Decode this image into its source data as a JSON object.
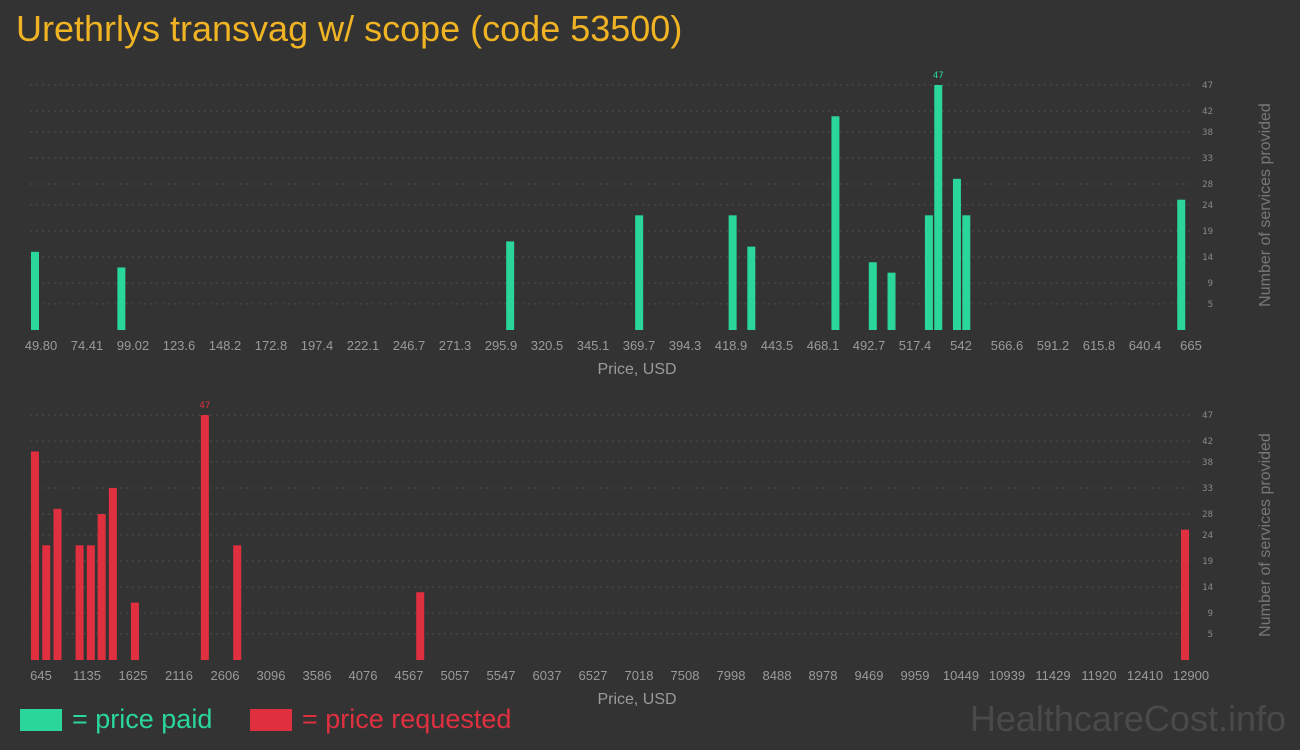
{
  "title": "Urethrlys transvag w/ scope (code 53500)",
  "legend": {
    "paid_label": "= price paid",
    "requested_label": "= price requested"
  },
  "watermark": "HealthcareCost.info",
  "colors": {
    "background": "#333333",
    "title": "#f0b323",
    "paid": "#2ad699",
    "requested": "#e03040",
    "grid": "#4d4d4d",
    "tick_text": "#9a9a9a"
  },
  "chart_data": [
    {
      "type": "bar",
      "series_name": "price paid",
      "xlabel": "Price, USD",
      "ylabel": "Number of services provided",
      "ylim": [
        0,
        50
      ],
      "yticks": [
        "5",
        "9",
        "14",
        "19",
        "24",
        "28",
        "33",
        "38",
        "42",
        "47"
      ],
      "xtick_labels": [
        "49.80",
        "74.41",
        "99.02",
        "123.6",
        "148.2",
        "172.8",
        "197.4",
        "222.1",
        "246.7",
        "271.3",
        "295.9",
        "320.5",
        "345.1",
        "369.7",
        "394.3",
        "418.9",
        "443.5",
        "468.1",
        "492.7",
        "517.4",
        "542",
        "566.6",
        "591.2",
        "615.8",
        "640.4",
        "665"
      ],
      "max_label": "47",
      "bars": [
        {
          "x": 49.8,
          "y": 15
        },
        {
          "x": 96.0,
          "y": 12
        },
        {
          "x": 304.0,
          "y": 17
        },
        {
          "x": 373.0,
          "y": 22
        },
        {
          "x": 423.0,
          "y": 22
        },
        {
          "x": 433.0,
          "y": 16
        },
        {
          "x": 478.0,
          "y": 41
        },
        {
          "x": 498.0,
          "y": 13
        },
        {
          "x": 508.0,
          "y": 11
        },
        {
          "x": 528.0,
          "y": 22
        },
        {
          "x": 533.0,
          "y": 47
        },
        {
          "x": 543.0,
          "y": 29
        },
        {
          "x": 548.0,
          "y": 22
        },
        {
          "x": 663.0,
          "y": 25
        }
      ]
    },
    {
      "type": "bar",
      "series_name": "price requested",
      "xlabel": "Price, USD",
      "ylabel": "Number of services provided",
      "ylim": [
        0,
        50
      ],
      "yticks": [
        "5",
        "9",
        "14",
        "19",
        "24",
        "28",
        "33",
        "38",
        "42",
        "47"
      ],
      "xtick_labels": [
        "645",
        "1135",
        "1625",
        "2116",
        "2606",
        "3096",
        "3586",
        "4076",
        "4567",
        "5057",
        "5547",
        "6037",
        "6527",
        "7018",
        "7508",
        "7998",
        "8488",
        "8978",
        "9469",
        "9959",
        "10449",
        "10939",
        "11429",
        "11920",
        "12410",
        "12900"
      ],
      "max_label": "47",
      "bars": [
        {
          "x": 645,
          "y": 40
        },
        {
          "x": 765,
          "y": 22
        },
        {
          "x": 885,
          "y": 29
        },
        {
          "x": 1120,
          "y": 22
        },
        {
          "x": 1240,
          "y": 22
        },
        {
          "x": 1355,
          "y": 28
        },
        {
          "x": 1475,
          "y": 33
        },
        {
          "x": 1710,
          "y": 11
        },
        {
          "x": 2455,
          "y": 47
        },
        {
          "x": 2800,
          "y": 22
        },
        {
          "x": 4750,
          "y": 13
        },
        {
          "x": 12900,
          "y": 25
        }
      ]
    }
  ]
}
